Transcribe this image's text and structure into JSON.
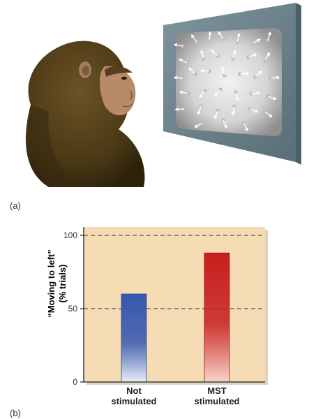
{
  "panels": {
    "a": "(a)",
    "b": "(b)"
  },
  "colors": {
    "plot_bg": "#f5dcb4",
    "not_stimulated_bar": "#3557b0",
    "mst_stimulated_bar": "#c81e1e"
  },
  "illustration": {
    "subject": "monkey-icon",
    "display": "moving-dots-display-icon"
  },
  "chart_data": {
    "type": "bar",
    "categories": [
      [
        "Not",
        "stimulated"
      ],
      [
        "MST",
        "stimulated"
      ]
    ],
    "values": [
      60,
      88
    ],
    "ylabel_lines": [
      "“Moving to left”",
      "(% trials)"
    ],
    "yticks": [
      0,
      50,
      100
    ],
    "ylim": [
      0,
      100
    ],
    "gridlines": [
      50,
      100
    ],
    "grid": "dashed at 50 and 100",
    "xlabel": "",
    "title": ""
  }
}
